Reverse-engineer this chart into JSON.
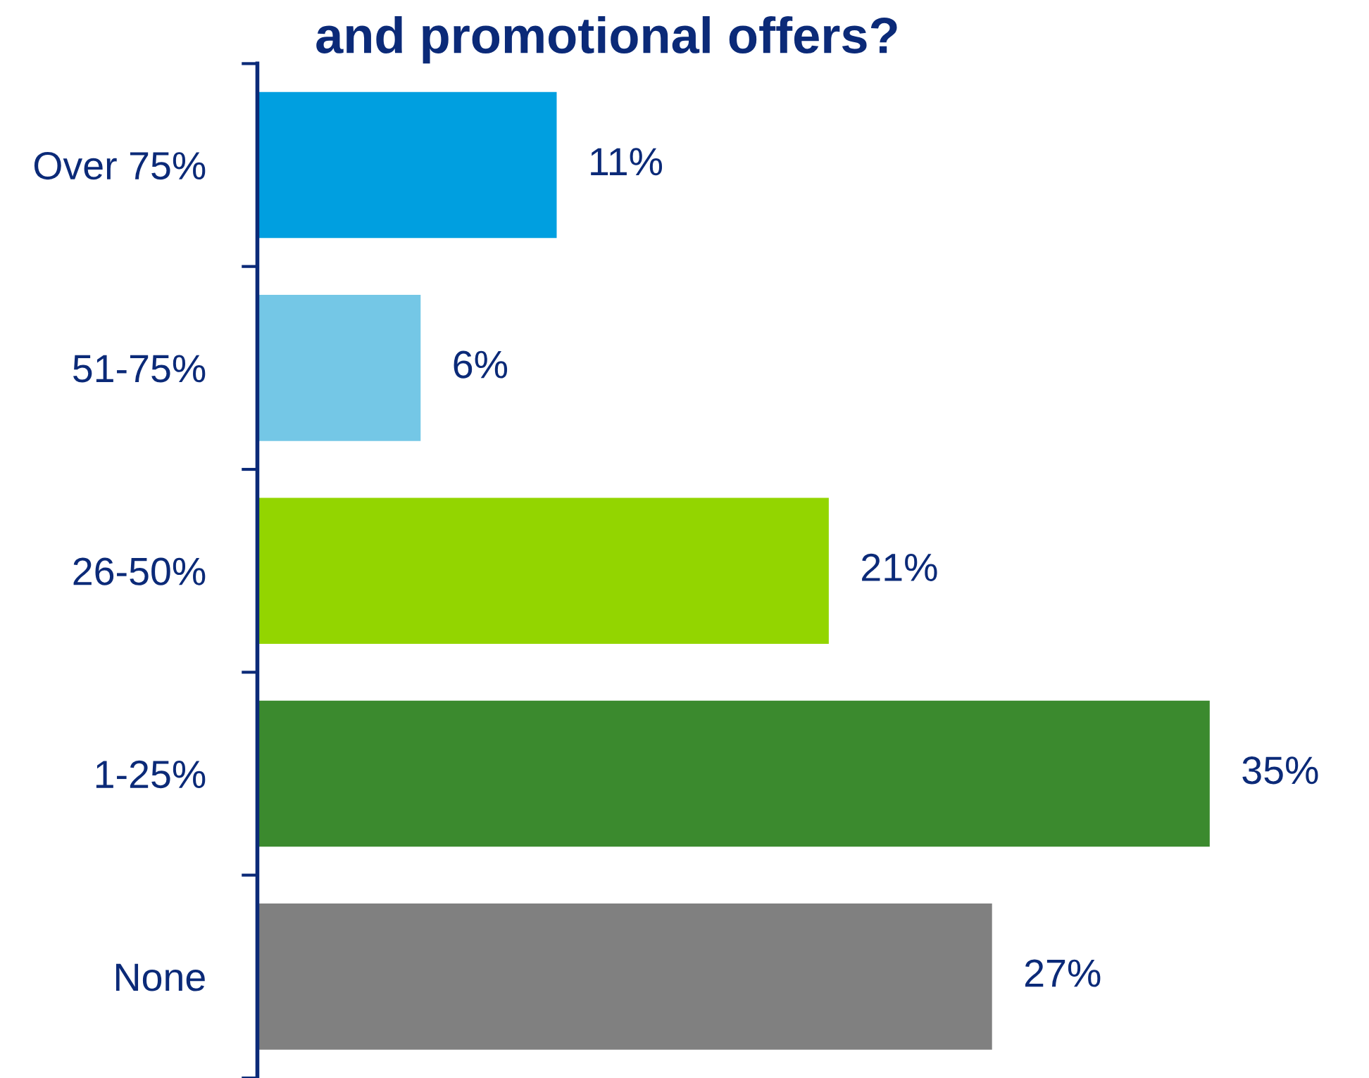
{
  "chart_data": {
    "type": "bar",
    "orientation": "horizontal",
    "title": "and promotional offers?",
    "categories": [
      "Over 75%",
      "51-75%",
      "26-50%",
      "1-25%",
      "None"
    ],
    "values": [
      11,
      6,
      21,
      35,
      27
    ],
    "value_labels": [
      "11%",
      "6%",
      "21%",
      "35%",
      "27%"
    ],
    "colors": [
      "#009fe0",
      "#74c7e6",
      "#93d500",
      "#3b8a2e",
      "#808080"
    ]
  }
}
